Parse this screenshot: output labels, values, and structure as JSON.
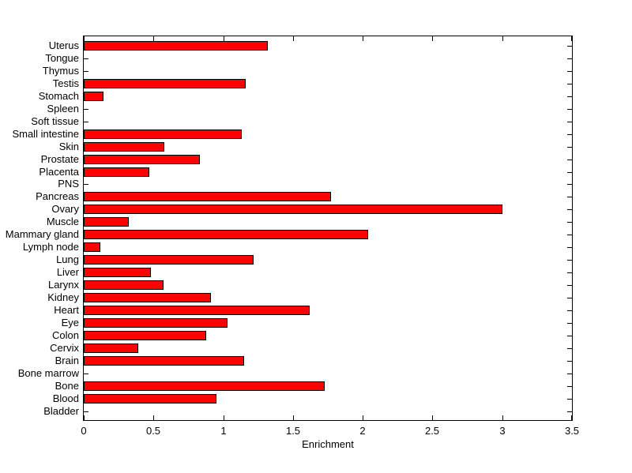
{
  "figure": {
    "background": "#ffffff",
    "text_color": "#000000"
  },
  "chart_data": {
    "type": "bar",
    "orientation": "horizontal",
    "xlabel": "Enrichment",
    "ylabel": "",
    "xlim": [
      0,
      3.5
    ],
    "xticks": [
      0,
      0.5,
      1,
      1.5,
      2,
      2.5,
      3,
      3.5
    ],
    "xtick_labels": [
      "0",
      "0.5",
      "1",
      "1.5",
      "2",
      "2.5",
      "3",
      "3.5"
    ],
    "grid": false,
    "legend": false,
    "bar_color": "#ff0000",
    "bar_edge_color": "#000000",
    "axis_color": "#000000",
    "categories": [
      "Uterus",
      "Tongue",
      "Thymus",
      "Testis",
      "Stomach",
      "Spleen",
      "Soft tissue",
      "Small intestine",
      "Skin",
      "Prostate",
      "Placenta",
      "PNS",
      "Pancreas",
      "Ovary",
      "Muscle",
      "Mammary gland",
      "Lymph node",
      "Lung",
      "Liver",
      "Larynx",
      "Kidney",
      "Heart",
      "Eye",
      "Colon",
      "Cervix",
      "Brain",
      "Bone marrow",
      "Bone",
      "Blood",
      "Bladder"
    ],
    "values": [
      1.32,
      0,
      0,
      1.16,
      0.14,
      0,
      0,
      1.13,
      0.58,
      0.83,
      0.47,
      0,
      1.77,
      3.0,
      0.32,
      2.04,
      0.12,
      1.22,
      0.48,
      0.57,
      0.91,
      1.62,
      1.03,
      0.88,
      0.39,
      1.15,
      0,
      1.73,
      0.95,
      0
    ]
  }
}
